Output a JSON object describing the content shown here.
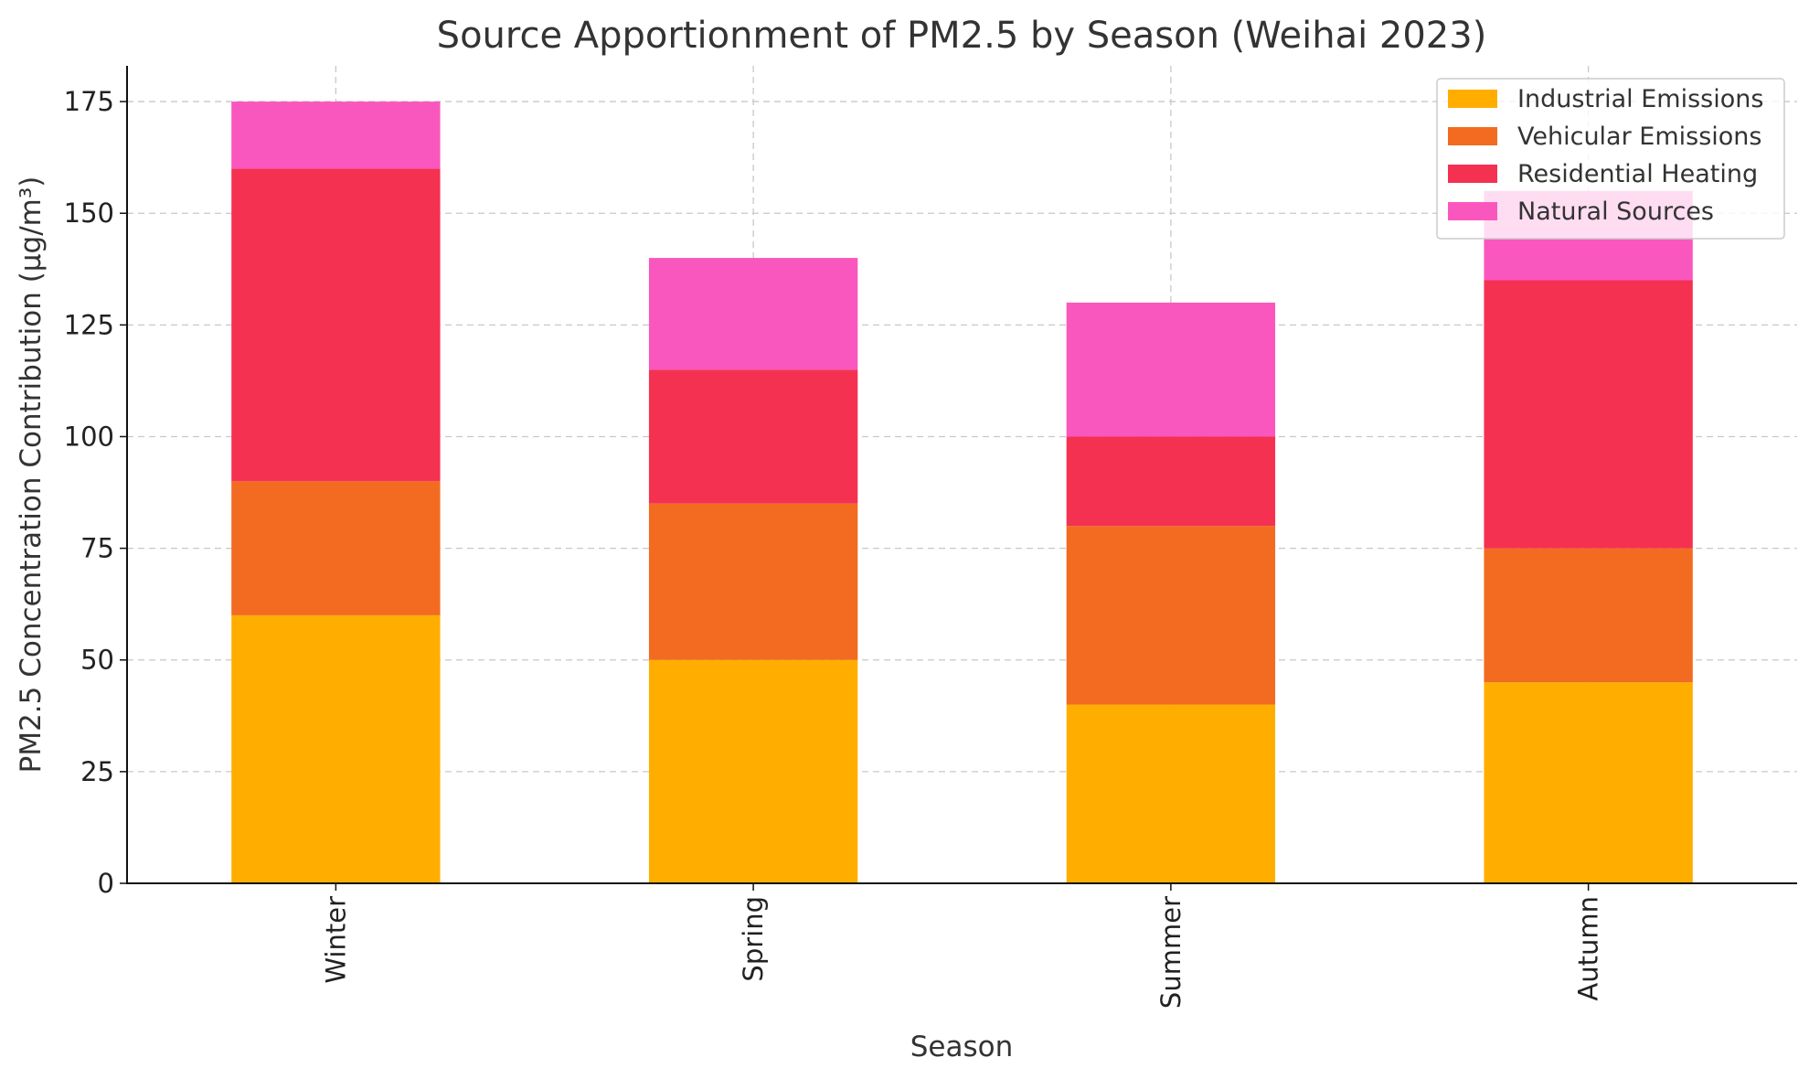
{
  "chart_data": {
    "type": "bar",
    "stacked": true,
    "title": "Source Apportionment of PM2.5 by Season (Weihai 2023)",
    "xlabel": "Season",
    "ylabel": "PM2.5 Concentration Contribution (µg/m³)",
    "categories": [
      "Winter",
      "Spring",
      "Summer",
      "Autumn"
    ],
    "series": [
      {
        "name": "Industrial Emissions",
        "color": "#FFAE00",
        "values": [
          60,
          50,
          40,
          45
        ]
      },
      {
        "name": "Vehicular Emissions",
        "color": "#F26B21",
        "values": [
          30,
          35,
          40,
          30
        ]
      },
      {
        "name": "Residential Heating",
        "color": "#F53152",
        "values": [
          70,
          30,
          20,
          60
        ]
      },
      {
        "name": "Natural Sources",
        "color": "#FA57BE",
        "values": [
          15,
          25,
          30,
          20
        ]
      }
    ],
    "ylim": [
      0,
      183
    ],
    "yticks": [
      0,
      25,
      50,
      75,
      100,
      125,
      150,
      175
    ],
    "grid": true,
    "legend_position": "top-right"
  }
}
